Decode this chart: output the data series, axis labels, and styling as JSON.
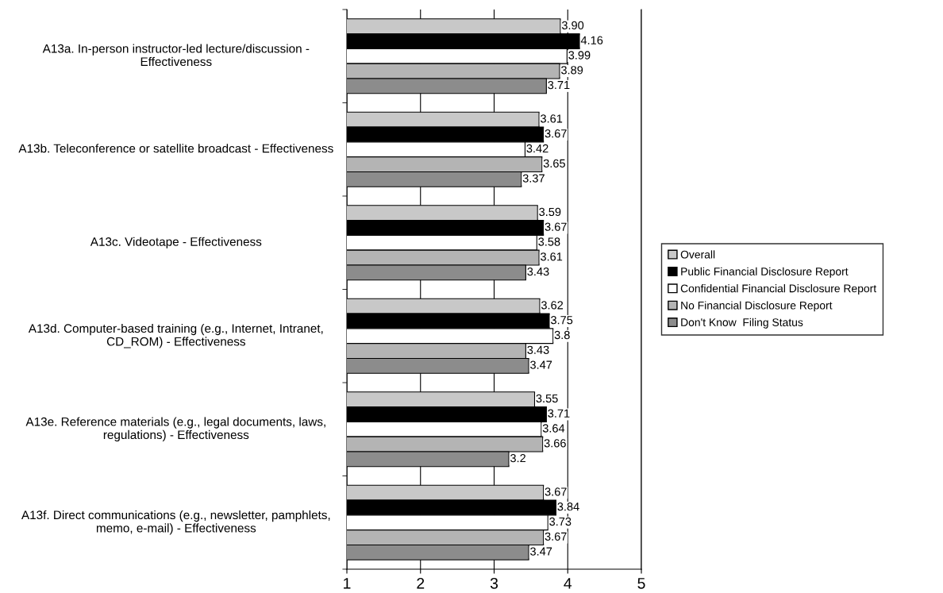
{
  "chart_data": {
    "type": "bar",
    "orientation": "horizontal",
    "categories": [
      "A13a. In-person instructor-led lecture/discussion - Effectiveness",
      "A13b. Teleconference or satellite broadcast - Effectiveness",
      "A13c. Videotape - Effectiveness",
      "A13d. Computer-based training (e.g., Internet, Intranet, CD_ROM) - Effectiveness",
      "A13e. Reference materials (e.g., legal documents, laws, regulations) - Effectiveness",
      "A13f. Direct communications (e.g., newsletter, pamphlets, memo, e-mail) - Effectiveness"
    ],
    "series": [
      {
        "name": "Overall",
        "color": "#c8c8c8",
        "values": [
          3.9,
          3.61,
          3.59,
          3.62,
          3.55,
          3.67
        ],
        "value_labels": [
          "3.90",
          "3.61",
          "3.59",
          "3.62",
          "3.55",
          "3.67"
        ]
      },
      {
        "name": "Public Financial Disclosure Report",
        "color": "#000000",
        "values": [
          4.16,
          3.67,
          3.67,
          3.75,
          3.71,
          3.84
        ],
        "value_labels": [
          "4.16",
          "3.67",
          "3.67",
          "3.75",
          "3.71",
          "3.84"
        ]
      },
      {
        "name": "Confidential Financial Disclosure Report",
        "color": "#ffffff",
        "values": [
          3.99,
          3.42,
          3.58,
          3.8,
          3.64,
          3.73
        ],
        "value_labels": [
          "3.99",
          "3.42",
          "3.58",
          "3.8",
          "3.64",
          "3.73"
        ]
      },
      {
        "name": "No Financial Disclosure Report",
        "color": "#b4b4b4",
        "values": [
          3.89,
          3.65,
          3.61,
          3.43,
          3.66,
          3.67
        ],
        "value_labels": [
          "3.89",
          "3.65",
          "3.61",
          "3.43",
          "3.66",
          "3.67"
        ]
      },
      {
        "name": "Don't Know  Filing Status",
        "color": "#8c8c8c",
        "values": [
          3.71,
          3.37,
          3.43,
          3.47,
          3.2,
          3.47
        ],
        "value_labels": [
          "3.71",
          "3.37",
          "3.43",
          "3.47",
          "3.2",
          "3.47"
        ]
      }
    ],
    "xlim": [
      1,
      5
    ],
    "xticks": [
      1,
      2,
      3,
      4,
      5
    ],
    "grid": "x",
    "legend": "right"
  }
}
